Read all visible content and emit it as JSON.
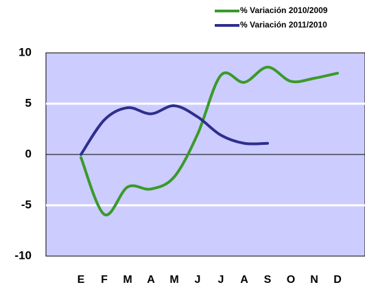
{
  "chart_data": {
    "type": "line",
    "categories": [
      "E",
      "F",
      "M",
      "A",
      "M",
      "J",
      "J",
      "A",
      "S",
      "O",
      "N",
      "D"
    ],
    "series": [
      {
        "name": "% Variación 2010/2009",
        "color": "#3a9a2a",
        "values": [
          -0.3,
          -5.9,
          -3.2,
          -3.4,
          -2.2,
          2.0,
          7.8,
          7.1,
          8.6,
          7.2,
          7.5,
          8.0
        ]
      },
      {
        "name": "% Variación 2011/2010",
        "color": "#2e2e8f",
        "values": [
          0,
          3.4,
          4.6,
          4.0,
          4.8,
          3.7,
          1.9,
          1.1,
          1.1,
          null,
          null,
          null
        ]
      }
    ],
    "ylim": [
      -10,
      10
    ],
    "yticks": [
      -10,
      -5,
      0,
      5,
      10
    ],
    "grid": true,
    "smooth": true
  }
}
